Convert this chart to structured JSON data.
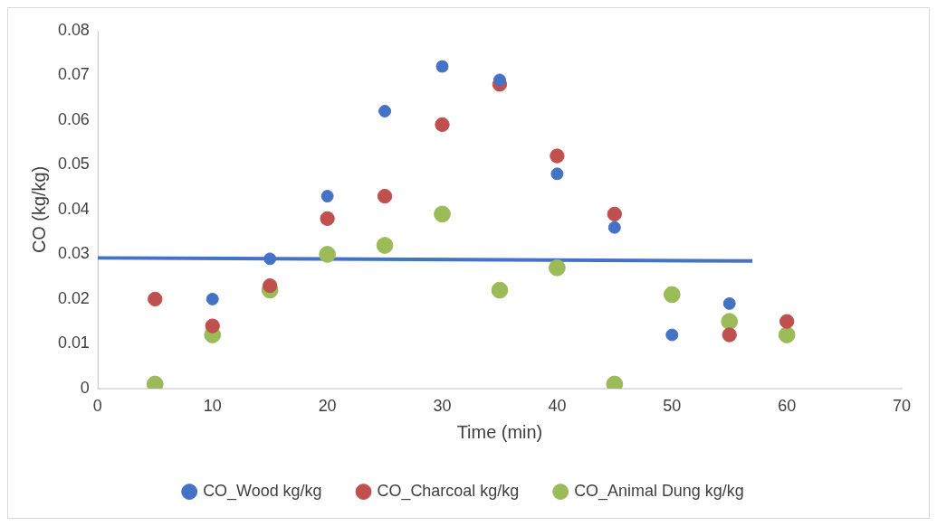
{
  "chart_data": {
    "type": "scatter",
    "xlabel": "Time (min)",
    "ylabel": "CO (kg/kg)",
    "xlim": [
      0,
      70
    ],
    "xticks": [
      0,
      10,
      20,
      30,
      40,
      50,
      60,
      70
    ],
    "ylim": [
      0,
      0.08
    ],
    "yticks": [
      0,
      0.01,
      0.02,
      0.03,
      0.04,
      0.05,
      0.06,
      0.07,
      0.08
    ],
    "grid": false,
    "legend": "bottom",
    "marker": "circle",
    "x": [
      5,
      10,
      15,
      20,
      25,
      30,
      35,
      40,
      45,
      50,
      55,
      60
    ],
    "series": [
      {
        "name": "CO_Wood kg/kg",
        "color": "#4472c4",
        "values": [
          null,
          0.02,
          0.029,
          0.043,
          0.062,
          0.072,
          0.069,
          0.048,
          0.036,
          0.012,
          0.019,
          null
        ]
      },
      {
        "name": "CO_Charcoal kg/kg",
        "color": "#c0504d",
        "values": [
          0.02,
          0.014,
          0.023,
          0.038,
          0.043,
          0.059,
          0.068,
          0.052,
          0.039,
          null,
          0.012,
          0.015
        ]
      },
      {
        "name": "CO_Animal Dung kg/kg",
        "color": "#9bbb59",
        "values": [
          0.001,
          0.012,
          0.022,
          0.03,
          0.032,
          0.039,
          0.022,
          0.027,
          0.001,
          0.021,
          0.015,
          0.012
        ]
      },
      {
        "type": "line",
        "color": "#4472c4",
        "x": [
          0,
          57
        ],
        "values": [
          0.0292,
          0.0285
        ],
        "marker": "none"
      }
    ]
  }
}
